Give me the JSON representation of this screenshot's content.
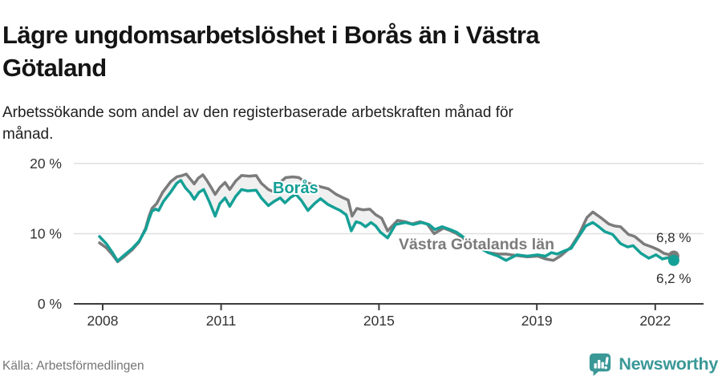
{
  "header": {
    "title_lines": [
      "Lägre ungdomsarbetslöshet i Borås än i Västra",
      "Götaland"
    ],
    "subtitle_lines": [
      "Arbetssökande som andel av den registerbaserade arbetskraften månad för",
      "månad."
    ]
  },
  "footer": {
    "source": "Källa: Arbetsförmedlingen",
    "brand": "Newsworthy",
    "brand_color": "#3a9897",
    "logo_icon": "bar-chart-speech-bubble-icon"
  },
  "chart_data": {
    "type": "line",
    "unit": "%",
    "grid": true,
    "band_fill": "#f0f0f0",
    "axis_color": "#3d3d3d",
    "grid_color": "#dfdfdf",
    "tick_label_color": "#333333",
    "annotation_color": "#2e2e2e",
    "y_range": [
      0,
      22
    ],
    "x_range": [
      2008.0,
      2022.58
    ],
    "y_ticks": [
      {
        "value": 0,
        "label": "0 %"
      },
      {
        "value": 10,
        "label": "10 %"
      },
      {
        "value": 20,
        "label": "20 %"
      }
    ],
    "x_ticks": [
      {
        "value": 2008,
        "label": "2008"
      },
      {
        "value": 2011,
        "label": "2011"
      },
      {
        "value": 2015,
        "label": "2015"
      },
      {
        "value": 2019,
        "label": "2019"
      },
      {
        "value": 2022,
        "label": "2022"
      }
    ],
    "series": [
      {
        "name": "Västra Götalands län",
        "color": "#7b7b7b",
        "end_label": "6,8 %",
        "end_value": 6.8,
        "points": [
          [
            2008.0,
            8.7
          ],
          [
            2008.17,
            8.0
          ],
          [
            2008.33,
            7.0
          ],
          [
            2008.46,
            6.0
          ],
          [
            2008.62,
            6.7
          ],
          [
            2008.83,
            7.7
          ],
          [
            2009.0,
            8.8
          ],
          [
            2009.17,
            10.8
          ],
          [
            2009.25,
            12.4
          ],
          [
            2009.33,
            13.6
          ],
          [
            2009.45,
            14.3
          ],
          [
            2009.6,
            15.9
          ],
          [
            2009.8,
            17.4
          ],
          [
            2009.96,
            18.1
          ],
          [
            2010.1,
            18.3
          ],
          [
            2010.2,
            18.5
          ],
          [
            2010.3,
            17.8
          ],
          [
            2010.4,
            17.1
          ],
          [
            2010.5,
            17.9
          ],
          [
            2010.62,
            18.4
          ],
          [
            2010.72,
            17.6
          ],
          [
            2010.82,
            16.7
          ],
          [
            2010.93,
            15.6
          ],
          [
            2011.05,
            16.6
          ],
          [
            2011.18,
            17.3
          ],
          [
            2011.3,
            16.3
          ],
          [
            2011.45,
            17.5
          ],
          [
            2011.6,
            18.3
          ],
          [
            2011.8,
            18.2
          ],
          [
            2011.97,
            18.3
          ],
          [
            2012.1,
            17.2
          ],
          [
            2012.28,
            16.3
          ],
          [
            2012.4,
            16.0
          ],
          [
            2012.55,
            17.2
          ],
          [
            2012.72,
            18.0
          ],
          [
            2012.9,
            18.1
          ],
          [
            2013.05,
            18.0
          ],
          [
            2013.2,
            17.4
          ],
          [
            2013.4,
            17.0
          ],
          [
            2013.6,
            16.7
          ],
          [
            2013.8,
            16.4
          ],
          [
            2014.0,
            15.6
          ],
          [
            2014.18,
            15.1
          ],
          [
            2014.3,
            14.8
          ],
          [
            2014.4,
            12.5
          ],
          [
            2014.52,
            13.6
          ],
          [
            2014.68,
            13.4
          ],
          [
            2014.85,
            13.5
          ],
          [
            2015.0,
            12.7
          ],
          [
            2015.15,
            12.2
          ],
          [
            2015.3,
            10.4
          ],
          [
            2015.55,
            11.9
          ],
          [
            2015.75,
            11.7
          ],
          [
            2015.92,
            11.4
          ],
          [
            2016.12,
            11.7
          ],
          [
            2016.3,
            11.4
          ],
          [
            2016.48,
            10.0
          ],
          [
            2016.72,
            10.8
          ],
          [
            2016.9,
            10.4
          ],
          [
            2017.05,
            10.0
          ],
          [
            2017.3,
            9.0
          ],
          [
            2017.6,
            8.1
          ],
          [
            2017.85,
            7.3
          ],
          [
            2018.1,
            7.1
          ],
          [
            2018.3,
            7.1
          ],
          [
            2018.55,
            6.9
          ],
          [
            2018.84,
            6.7
          ],
          [
            2019.1,
            6.8
          ],
          [
            2019.3,
            6.4
          ],
          [
            2019.5,
            6.2
          ],
          [
            2019.7,
            6.9
          ],
          [
            2019.95,
            8.1
          ],
          [
            2020.15,
            9.9
          ],
          [
            2020.35,
            12.3
          ],
          [
            2020.5,
            13.1
          ],
          [
            2020.7,
            12.3
          ],
          [
            2020.9,
            11.4
          ],
          [
            2021.05,
            11.1
          ],
          [
            2021.2,
            11.0
          ],
          [
            2021.4,
            9.9
          ],
          [
            2021.56,
            9.6
          ],
          [
            2021.8,
            8.5
          ],
          [
            2022.0,
            8.1
          ],
          [
            2022.16,
            7.7
          ],
          [
            2022.3,
            7.2
          ],
          [
            2022.45,
            7.0
          ],
          [
            2022.55,
            6.8
          ]
        ]
      },
      {
        "name": "Borås",
        "color": "#14a096",
        "end_label": "6,2 %",
        "end_value": 6.2,
        "points": [
          [
            2008.0,
            9.6
          ],
          [
            2008.17,
            8.6
          ],
          [
            2008.33,
            7.3
          ],
          [
            2008.46,
            6.1
          ],
          [
            2008.62,
            6.9
          ],
          [
            2008.83,
            7.9
          ],
          [
            2009.0,
            8.9
          ],
          [
            2009.17,
            10.6
          ],
          [
            2009.25,
            12.0
          ],
          [
            2009.33,
            13.2
          ],
          [
            2009.42,
            13.5
          ],
          [
            2009.5,
            13.3
          ],
          [
            2009.62,
            14.6
          ],
          [
            2009.8,
            15.9
          ],
          [
            2009.96,
            17.2
          ],
          [
            2010.06,
            17.6
          ],
          [
            2010.18,
            16.5
          ],
          [
            2010.3,
            15.8
          ],
          [
            2010.4,
            14.9
          ],
          [
            2010.52,
            15.9
          ],
          [
            2010.64,
            16.3
          ],
          [
            2010.78,
            14.6
          ],
          [
            2010.93,
            12.5
          ],
          [
            2011.05,
            14.3
          ],
          [
            2011.18,
            15.1
          ],
          [
            2011.3,
            13.9
          ],
          [
            2011.45,
            15.3
          ],
          [
            2011.6,
            16.3
          ],
          [
            2011.75,
            16.1
          ],
          [
            2011.97,
            16.2
          ],
          [
            2012.1,
            15.1
          ],
          [
            2012.28,
            14.0
          ],
          [
            2012.42,
            14.6
          ],
          [
            2012.58,
            15.1
          ],
          [
            2012.7,
            14.4
          ],
          [
            2012.85,
            15.2
          ],
          [
            2012.98,
            15.6
          ],
          [
            2013.12,
            14.7
          ],
          [
            2013.28,
            13.3
          ],
          [
            2013.45,
            14.3
          ],
          [
            2013.6,
            15.0
          ],
          [
            2013.78,
            14.2
          ],
          [
            2013.95,
            13.7
          ],
          [
            2014.1,
            13.3
          ],
          [
            2014.25,
            12.7
          ],
          [
            2014.38,
            10.4
          ],
          [
            2014.5,
            11.7
          ],
          [
            2014.62,
            11.5
          ],
          [
            2014.74,
            11.0
          ],
          [
            2014.88,
            11.6
          ],
          [
            2015.0,
            11.1
          ],
          [
            2015.12,
            10.2
          ],
          [
            2015.3,
            9.4
          ],
          [
            2015.5,
            11.3
          ],
          [
            2015.75,
            11.6
          ],
          [
            2015.95,
            11.3
          ],
          [
            2016.15,
            11.6
          ],
          [
            2016.35,
            11.3
          ],
          [
            2016.5,
            10.6
          ],
          [
            2016.68,
            11.0
          ],
          [
            2016.88,
            10.6
          ],
          [
            2017.05,
            10.2
          ],
          [
            2017.3,
            9.2
          ],
          [
            2017.6,
            8.1
          ],
          [
            2017.85,
            7.3
          ],
          [
            2018.1,
            6.8
          ],
          [
            2018.3,
            6.2
          ],
          [
            2018.58,
            7.0
          ],
          [
            2018.84,
            6.8
          ],
          [
            2019.1,
            7.0
          ],
          [
            2019.3,
            6.8
          ],
          [
            2019.45,
            7.3
          ],
          [
            2019.6,
            7.1
          ],
          [
            2019.8,
            7.6
          ],
          [
            2019.95,
            7.9
          ],
          [
            2020.12,
            9.4
          ],
          [
            2020.32,
            11.1
          ],
          [
            2020.5,
            11.6
          ],
          [
            2020.65,
            11.0
          ],
          [
            2020.8,
            10.3
          ],
          [
            2021.0,
            9.9
          ],
          [
            2021.2,
            8.6
          ],
          [
            2021.38,
            8.1
          ],
          [
            2021.52,
            8.3
          ],
          [
            2021.72,
            7.2
          ],
          [
            2021.92,
            6.5
          ],
          [
            2022.1,
            7.0
          ],
          [
            2022.26,
            6.4
          ],
          [
            2022.42,
            6.6
          ],
          [
            2022.55,
            6.2
          ]
        ]
      }
    ]
  }
}
